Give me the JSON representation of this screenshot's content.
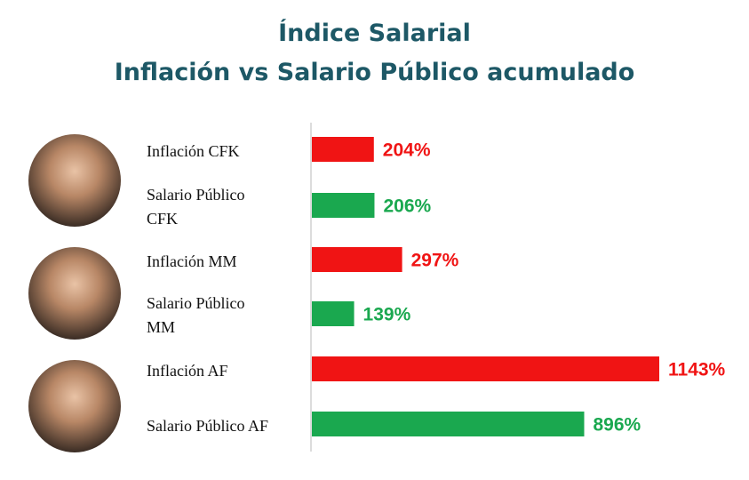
{
  "chart_data": {
    "type": "bar",
    "orientation": "horizontal",
    "title": "Índice Salarial",
    "subtitle": "Inflación vs Salario Público acumulado",
    "categories": [
      "Inflación CFK",
      "Salario Público CFK",
      "Inflación MM",
      "Salario Público MM",
      "Inflación AF",
      "Salario Público AF"
    ],
    "values": [
      204,
      206,
      297,
      139,
      1143,
      896
    ],
    "value_labels": [
      "204%",
      "206%",
      "297%",
      "139%",
      "1143%",
      "896%"
    ],
    "colors": [
      "#f01414",
      "#1aa84f",
      "#f01414",
      "#1aa84f",
      "#f01414",
      "#1aa84f"
    ]
  }
}
